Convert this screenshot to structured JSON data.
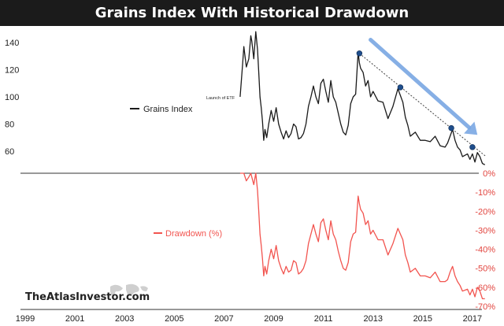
{
  "header": {
    "title": "Grains Index With Historical Drawdown"
  },
  "watermark": {
    "text": "TheAtlasInvestor.com"
  },
  "colors": {
    "index_line": "#1a1a1a",
    "drawdown_line": "#f2544f",
    "drawdown_axis": "#e2453f",
    "arrow": "#7aa7e3",
    "peak_marker": "#1f4e8c"
  },
  "chart_data": [
    {
      "type": "line",
      "title": "",
      "xlabel": "",
      "ylabel": "",
      "ylim": [
        46,
        150
      ],
      "yticks": [
        60,
        80,
        100,
        120,
        140
      ],
      "xticks": [
        "1999",
        "2001",
        "2003",
        "2005",
        "2007",
        "2009",
        "2011",
        "2013",
        "2015",
        "2017"
      ],
      "legend": "Grains Index",
      "legend_position": "left",
      "annotation": "Launch of ETF",
      "series": [
        {
          "name": "Grains Index",
          "x": [
            2007.65,
            2007.75,
            2007.8,
            2007.9,
            2008.0,
            2008.08,
            2008.12,
            2008.2,
            2008.28,
            2008.35,
            2008.4,
            2008.45,
            2008.5,
            2008.55,
            2008.6,
            2008.65,
            2008.72,
            2008.8,
            2008.9,
            2009.0,
            2009.1,
            2009.2,
            2009.3,
            2009.4,
            2009.5,
            2009.6,
            2009.7,
            2009.8,
            2009.9,
            2010.0,
            2010.1,
            2010.2,
            2010.3,
            2010.4,
            2010.5,
            2010.6,
            2010.7,
            2010.8,
            2010.9,
            2011.0,
            2011.1,
            2011.2,
            2011.3,
            2011.4,
            2011.5,
            2011.6,
            2011.7,
            2011.8,
            2011.9,
            2012.0,
            2012.1,
            2012.2,
            2012.3,
            2012.4,
            2012.45,
            2012.5,
            2012.6,
            2012.7,
            2012.8,
            2012.9,
            2013.0,
            2013.2,
            2013.4,
            2013.6,
            2013.8,
            2014.0,
            2014.1,
            2014.2,
            2014.3,
            2014.4,
            2014.5,
            2014.7,
            2014.9,
            2015.1,
            2015.3,
            2015.5,
            2015.7,
            2015.9,
            2016.0,
            2016.1,
            2016.2,
            2016.3,
            2016.4,
            2016.5,
            2016.6,
            2016.8,
            2016.9,
            2017.0,
            2017.1,
            2017.2,
            2017.3,
            2017.4,
            2017.5
          ],
          "values": [
            100,
            124,
            137,
            122,
            128,
            145,
            141,
            128,
            148,
            135,
            118,
            100,
            92,
            82,
            68,
            76,
            70,
            80,
            90,
            82,
            92,
            80,
            74,
            69,
            75,
            70,
            73,
            80,
            78,
            69,
            70,
            73,
            80,
            93,
            100,
            108,
            100,
            95,
            110,
            113,
            104,
            96,
            112,
            100,
            96,
            88,
            80,
            74,
            72,
            79,
            95,
            100,
            102,
            133,
            125,
            121,
            118,
            108,
            112,
            100,
            104,
            97,
            96,
            84,
            93,
            106,
            101,
            96,
            85,
            79,
            71,
            74,
            68,
            68,
            67,
            71,
            64,
            63,
            66,
            71,
            76,
            68,
            63,
            61,
            56,
            58,
            54,
            58,
            52,
            59,
            56,
            51,
            50
          ]
        }
      ],
      "trendline": {
        "from": [
          2012.45,
          132
        ],
        "to": [
          2017.55,
          56
        ]
      },
      "peaks": [
        {
          "x": 2012.45,
          "y": 132
        },
        {
          "x": 2014.1,
          "y": 107
        },
        {
          "x": 2016.15,
          "y": 77
        },
        {
          "x": 2017.0,
          "y": 63
        }
      ],
      "trend_arrow": {
        "from": [
          2012.9,
          142
        ],
        "to": [
          2017.2,
          72
        ]
      }
    },
    {
      "type": "line",
      "title": "",
      "xlabel": "",
      "ylabel": "",
      "ylim": [
        -70,
        0
      ],
      "yticks": [
        "0%",
        "-10%",
        "-20%",
        "-30%",
        "-40%",
        "-50%",
        "-60%",
        "-70%"
      ],
      "xticks": [
        "1999",
        "2001",
        "2003",
        "2005",
        "2007",
        "2009",
        "2011",
        "2013",
        "2015",
        "2017"
      ],
      "legend": "Drawdown (%)",
      "legend_position": "left",
      "series": [
        {
          "name": "Drawdown (%)",
          "x": [
            2007.65,
            2007.75,
            2007.8,
            2007.9,
            2008.0,
            2008.08,
            2008.12,
            2008.2,
            2008.28,
            2008.35,
            2008.4,
            2008.45,
            2008.5,
            2008.55,
            2008.6,
            2008.65,
            2008.72,
            2008.8,
            2008.9,
            2009.0,
            2009.1,
            2009.2,
            2009.3,
            2009.4,
            2009.5,
            2009.6,
            2009.7,
            2009.8,
            2009.9,
            2010.0,
            2010.1,
            2010.2,
            2010.3,
            2010.4,
            2010.5,
            2010.6,
            2010.7,
            2010.8,
            2010.9,
            2011.0,
            2011.1,
            2011.2,
            2011.3,
            2011.4,
            2011.5,
            2011.6,
            2011.7,
            2011.8,
            2011.9,
            2012.0,
            2012.1,
            2012.2,
            2012.3,
            2012.4,
            2012.45,
            2012.5,
            2012.6,
            2012.7,
            2012.8,
            2012.9,
            2013.0,
            2013.2,
            2013.4,
            2013.6,
            2013.8,
            2014.0,
            2014.1,
            2014.2,
            2014.3,
            2014.4,
            2014.5,
            2014.7,
            2014.9,
            2015.1,
            2015.3,
            2015.5,
            2015.7,
            2015.9,
            2016.0,
            2016.1,
            2016.2,
            2016.3,
            2016.4,
            2016.5,
            2016.6,
            2016.8,
            2016.9,
            2017.0,
            2017.1,
            2017.2,
            2017.3,
            2017.4,
            2017.5
          ],
          "values": [
            0,
            0,
            0,
            -4,
            -2,
            0,
            -2,
            -6,
            0,
            -9,
            -20,
            -32,
            -38,
            -45,
            -54,
            -49,
            -53,
            -46,
            -40,
            -45,
            -38,
            -46,
            -50,
            -53,
            -49,
            -52,
            -51,
            -46,
            -47,
            -53,
            -52,
            -50,
            -46,
            -37,
            -32,
            -27,
            -32,
            -36,
            -26,
            -24,
            -30,
            -35,
            -25,
            -32,
            -35,
            -41,
            -46,
            -50,
            -51,
            -47,
            -36,
            -32,
            -31,
            -12,
            -16,
            -19,
            -21,
            -27,
            -25,
            -32,
            -30,
            -35,
            -35,
            -43,
            -37,
            -29,
            -32,
            -35,
            -43,
            -47,
            -52,
            -50,
            -54,
            -54,
            -55,
            -52,
            -57,
            -57,
            -56,
            -52,
            -49,
            -54,
            -57,
            -59,
            -62,
            -61,
            -64,
            -61,
            -65,
            -60,
            -62,
            -66,
            -66
          ]
        }
      ]
    }
  ]
}
